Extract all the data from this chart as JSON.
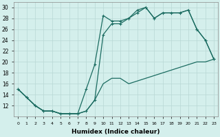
{
  "xlabel": "Humidex (Indice chaleur)",
  "bg_color": "#d4efec",
  "grid_color": "#b8d8d4",
  "line_color": "#1a6b60",
  "xlim": [
    -0.5,
    23.5
  ],
  "ylim": [
    10,
    31
  ],
  "xticks": [
    0,
    1,
    2,
    3,
    4,
    5,
    6,
    7,
    8,
    9,
    10,
    11,
    12,
    13,
    14,
    15,
    16,
    17,
    18,
    19,
    20,
    21,
    22,
    23
  ],
  "yticks": [
    12,
    14,
    16,
    18,
    20,
    22,
    24,
    26,
    28,
    30
  ],
  "line1_x": [
    0,
    1,
    2,
    3,
    4,
    5,
    6,
    7,
    8,
    9,
    10,
    11,
    12,
    13,
    14,
    15,
    16,
    17,
    18,
    19,
    20,
    21,
    22,
    23
  ],
  "line1_y": [
    15,
    13.5,
    12,
    11,
    11,
    10.5,
    10.5,
    10.5,
    11,
    13,
    16,
    17,
    17,
    16,
    16.5,
    17,
    17.5,
    18,
    18.5,
    19,
    19.5,
    20,
    20,
    20.5
  ],
  "line2_x": [
    0,
    1,
    2,
    3,
    4,
    5,
    6,
    7,
    8,
    9,
    10,
    11,
    12,
    13,
    14,
    15,
    16,
    17,
    18,
    19,
    20,
    21,
    22,
    23
  ],
  "line2_y": [
    15,
    13.5,
    12,
    11,
    11,
    10.5,
    10.5,
    10.5,
    15,
    19.5,
    28.5,
    27.5,
    27.5,
    28,
    29,
    30,
    28,
    29,
    29,
    29,
    29.5,
    26,
    24,
    20.5
  ],
  "line3_x": [
    0,
    1,
    2,
    3,
    4,
    5,
    6,
    7,
    8,
    9,
    10,
    11,
    12,
    13,
    14,
    15,
    16,
    17,
    18,
    19,
    20,
    21,
    22,
    23
  ],
  "line3_y": [
    15,
    13.5,
    12,
    11,
    11,
    10.5,
    10.5,
    10.5,
    11,
    13,
    25,
    27,
    27,
    28,
    29.5,
    30,
    28,
    29,
    29,
    29,
    29.5,
    26,
    24,
    20.5
  ],
  "marker_size": 2.5,
  "linewidth": 0.9
}
